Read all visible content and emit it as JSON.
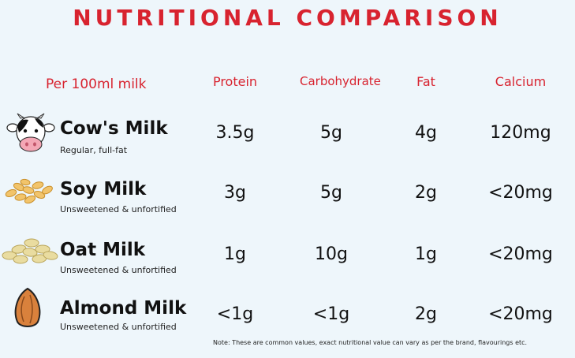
{
  "title": "NUTRITIONAL COMPARISON",
  "header": {
    "label": "Per 100ml milk",
    "columns": [
      "Protein",
      "Carbohydrate",
      "Fat",
      "Calcium"
    ]
  },
  "colors": {
    "accent": "#d8232f",
    "background": "#eef6fb"
  },
  "rows": [
    {
      "icon": "cow-icon",
      "name": "Cow's Milk",
      "subtitle": "Regular, full-fat",
      "values": [
        "3.5g",
        "5g",
        "4g",
        "120mg"
      ]
    },
    {
      "icon": "soybeans-icon",
      "name": "Soy Milk",
      "subtitle": "Unsweetened & unfortified",
      "values": [
        "3g",
        "5g",
        "2g",
        "<20mg"
      ]
    },
    {
      "icon": "oats-icon",
      "name": "Oat Milk",
      "subtitle": "Unsweetened & unfortified",
      "values": [
        "1g",
        "10g",
        "1g",
        "<20mg"
      ]
    },
    {
      "icon": "almond-icon",
      "name": "Almond Milk",
      "subtitle": "Unsweetened & unfortified",
      "values": [
        "<1g",
        "<1g",
        "2g",
        "<20mg"
      ]
    }
  ],
  "note": "Note: These are common values, exact nutritional value can vary as per the brand, flavourings etc."
}
